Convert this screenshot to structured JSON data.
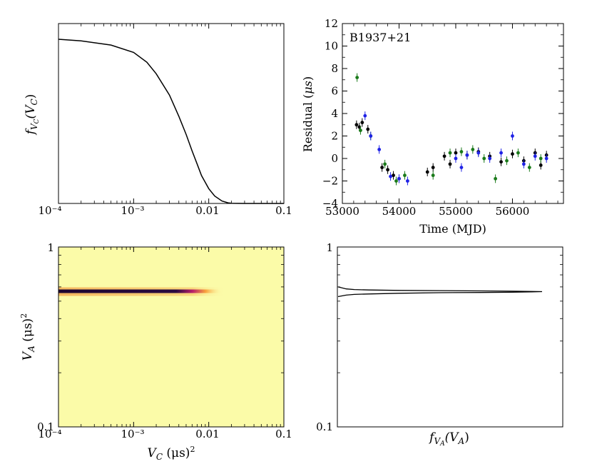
{
  "chart_data": [
    {
      "type": "line",
      "panel": "top-left",
      "xscale": "log",
      "xlim": [
        0.0001,
        0.1
      ],
      "x_ticks": [
        "10⁻⁴",
        "10⁻³",
        "0.01",
        "0.1"
      ],
      "ylabel": "f_{V_C}(V_C)",
      "ylabel_main": "f",
      "ylabel_sub": "V",
      "ylabel_subsub": "C",
      "ylabel_arg": "(V",
      "ylabel_argsub": "C",
      "ylabel_close": ")",
      "y_ticks": [],
      "series": [
        {
          "x": [
            0.0001,
            0.0002,
            0.0005,
            0.001,
            0.0015,
            0.002,
            0.003,
            0.004,
            0.005,
            0.006,
            0.007,
            0.008,
            0.01,
            0.012,
            0.015,
            0.018,
            0.02,
            0.03,
            0.05,
            0.1
          ],
          "y": [
            1.0,
            0.99,
            0.965,
            0.92,
            0.86,
            0.79,
            0.66,
            0.53,
            0.42,
            0.32,
            0.24,
            0.17,
            0.09,
            0.045,
            0.015,
            0.004,
            0.001,
            0,
            0,
            0
          ]
        }
      ]
    },
    {
      "type": "scatter",
      "panel": "top-right",
      "annotation": "B1937+21",
      "xlabel": "Time (MJD)",
      "ylabel_text": "Residual (",
      "ylabel_mu": "μs",
      "ylabel_close": ")",
      "xlim": [
        53000,
        56900
      ],
      "ylim": [
        -4,
        12
      ],
      "x_ticks": [
        53000,
        54000,
        55000,
        56000
      ],
      "y_ticks": [
        -4,
        -2,
        0,
        2,
        4,
        6,
        8,
        10,
        12
      ],
      "colors": {
        "black": "#000000",
        "green": "#1a7a1a",
        "blue": "#1f22e6"
      },
      "series": [
        {
          "name": "",
          "color": "black",
          "x": [
            53250,
            53300,
            53350,
            53450,
            53700,
            53800,
            53900,
            54000,
            54500,
            54600,
            54800,
            54900,
            55000,
            55200,
            55400,
            55600,
            55800,
            56000,
            56200,
            56400,
            56500,
            56600
          ],
          "y": [
            3.0,
            2.8,
            3.2,
            2.6,
            -0.8,
            -1.0,
            -1.5,
            -1.8,
            -1.2,
            -0.8,
            0.2,
            -0.5,
            0.5,
            0.3,
            0.6,
            0.2,
            -0.3,
            0.4,
            -0.2,
            0.5,
            -0.6,
            0.3
          ]
        },
        {
          "name": "",
          "color": "green",
          "x": [
            53260,
            53320,
            53500,
            53750,
            53950,
            54100,
            54600,
            54900,
            55100,
            55300,
            55500,
            55700,
            55900,
            56100,
            56300,
            56500
          ],
          "y": [
            7.2,
            2.5,
            2.0,
            -0.5,
            -2.0,
            -1.5,
            -1.5,
            0.5,
            0.6,
            0.8,
            0.0,
            -1.8,
            -0.2,
            0.5,
            -0.8,
            0.0
          ]
        },
        {
          "name": "",
          "color": "blue",
          "x": [
            53400,
            53500,
            53650,
            53850,
            54000,
            54150,
            55000,
            55100,
            55200,
            55400,
            55600,
            55800,
            56000,
            56200,
            56400,
            56600
          ],
          "y": [
            3.8,
            2.0,
            0.8,
            -1.6,
            -1.8,
            -2.0,
            0.0,
            -0.8,
            0.3,
            0.5,
            0.0,
            0.5,
            2.0,
            -0.5,
            0.2,
            0.0
          ]
        }
      ]
    },
    {
      "type": "heatmap",
      "panel": "bottom-left",
      "xscale": "log",
      "yscale": "log",
      "xlim": [
        0.0001,
        0.1
      ],
      "ylim": [
        0.1,
        1
      ],
      "x_ticks": [
        "10⁻⁴",
        "10⁻³",
        "0.01",
        "0.1"
      ],
      "y_ticks": [
        "0.1",
        "1"
      ],
      "xlabel_var": "V",
      "xlabel_sub": "C",
      "xlabel_unit": "(μs)",
      "xlabel_pow": "2",
      "ylabel_var": "V",
      "ylabel_sub": "A",
      "ylabel_unit": "(μs)",
      "ylabel_pow": "2",
      "ridge_y": 0.565,
      "ridge_x_end": 0.015,
      "colors": {
        "background": "#fbfba8",
        "dark": "#1c0630",
        "mid": "#b8206a",
        "edge": "#f9a23c"
      }
    },
    {
      "type": "line",
      "panel": "bottom-right",
      "yscale": "log",
      "ylim": [
        0.1,
        1
      ],
      "y_ticks": [
        "0.1",
        "1"
      ],
      "xlabel_main": "f",
      "xlabel_sub": "V",
      "xlabel_subsub": "A",
      "xlabel_arg": "(V",
      "xlabel_argsub": "A",
      "xlabel_close": ")",
      "peak_y": 0.565,
      "series": [
        {
          "x": [
            0.0,
            0.04,
            0.08,
            0.15,
            0.3,
            0.5,
            0.7,
            0.85,
            0.95,
            1.0,
            0.95,
            0.85,
            0.7,
            0.5,
            0.3,
            0.15,
            0.08,
            0.04,
            0.0
          ],
          "y": [
            0.6,
            0.585,
            0.58,
            0.577,
            0.574,
            0.572,
            0.57,
            0.568,
            0.566,
            0.565,
            0.563,
            0.561,
            0.559,
            0.557,
            0.553,
            0.548,
            0.545,
            0.54,
            0.53
          ]
        }
      ]
    }
  ]
}
